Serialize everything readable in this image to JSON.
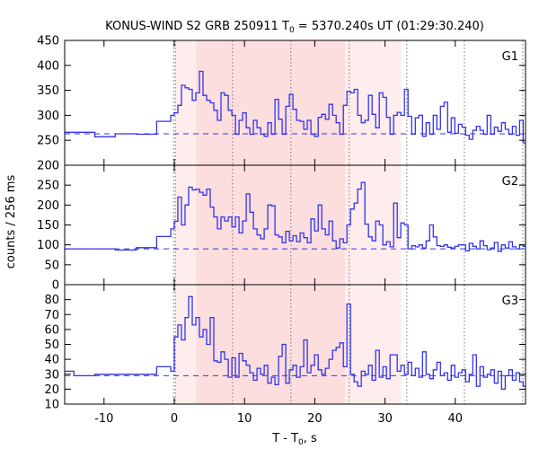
{
  "chart_data": {
    "type": "line",
    "style": "step",
    "title": {
      "pre": "KONUS-WIND S2 GRB 250911 T",
      "sub": "0",
      "post": " = 5370.240s UT (01:29:30.240)"
    },
    "xlabel": {
      "pre": "T - T",
      "sub": "0",
      "post": ", s"
    },
    "ylabel": "counts / 256 ms",
    "xlim": [
      -15.6,
      50.0
    ],
    "xticks": [
      -10,
      0,
      10,
      20,
      30,
      40
    ],
    "line_color": "#3333ee",
    "shading": [
      {
        "from": 0.1,
        "to": 3.1,
        "color": "#ffecec"
      },
      {
        "from": 3.1,
        "to": 24.3,
        "color": "#fddede"
      },
      {
        "from": 24.3,
        "to": 32.3,
        "color": "#ffecec"
      }
    ],
    "vlines": [
      -0.1,
      0.15,
      8.3,
      16.6,
      24.9,
      33.1,
      41.3,
      49.6
    ],
    "bin_width": 0.512,
    "panels": [
      {
        "name": "G1",
        "ylim": [
          200,
          450
        ],
        "yticks": [
          200,
          250,
          300,
          350,
          400,
          450
        ],
        "background": 263,
        "pre_edges": [
          -15.6,
          -11.3,
          -8.4,
          -5.4,
          -2.5,
          -0.5,
          0
        ],
        "pre_values": [
          266,
          257,
          263,
          262,
          288,
          300
        ],
        "values": [
          305,
          320,
          360,
          355,
          352,
          330,
          345,
          388,
          340,
          330,
          325,
          310,
          290,
          345,
          340,
          310,
          300,
          262,
          290,
          305,
          275,
          262,
          290,
          275,
          262,
          258,
          285,
          262,
          332,
          292,
          262,
          318,
          342,
          312,
          290,
          288,
          272,
          290,
          262,
          258,
          296,
          302,
          292,
          322,
          300,
          285,
          262,
          320,
          348,
          345,
          352,
          300,
          285,
          290,
          340,
          302,
          275,
          345,
          336,
          296,
          262,
          300,
          306,
          300,
          352,
          298,
          262,
          295,
          300,
          258,
          285,
          262,
          300,
          272,
          318,
          326,
          266,
          295,
          264,
          282,
          276,
          260,
          252,
          270,
          278,
          270,
          262,
          300,
          262,
          276,
          268,
          285,
          272,
          262,
          278,
          260,
          290,
          245
        ]
      },
      {
        "name": "G2",
        "ylim": [
          0,
          300
        ],
        "yticks": [
          0,
          50,
          100,
          150,
          200,
          250
        ],
        "background": 90,
        "pre_edges": [
          -15.6,
          -8.4,
          -5.4,
          -2.5,
          -0.5,
          0
        ],
        "pre_values": [
          90,
          87,
          93,
          121,
          140
        ],
        "values": [
          159,
          220,
          150,
          200,
          245,
          238,
          240,
          232,
          225,
          240,
          195,
          170,
          140,
          170,
          160,
          170,
          145,
          170,
          130,
          160,
          228,
          182,
          140,
          125,
          115,
          140,
          200,
          198,
          125,
          120,
          105,
          134,
          110,
          123,
          108,
          130,
          118,
          105,
          165,
          135,
          200,
          140,
          125,
          160,
          110,
          92,
          115,
          105,
          150,
          190,
          205,
          240,
          257,
          152,
          120,
          110,
          160,
          150,
          100,
          108,
          95,
          205,
          118,
          155,
          150,
          90,
          98,
          95,
          100,
          92,
          110,
          150,
          120,
          98,
          96,
          100,
          94,
          92,
          96,
          100,
          100,
          85,
          104,
          96,
          90,
          110,
          98,
          88,
          92,
          106,
          84,
          100,
          92,
          108,
          95,
          90,
          100,
          96
        ]
      },
      {
        "name": "G3",
        "ylim": [
          10,
          90
        ],
        "yticks": [
          10,
          20,
          30,
          40,
          50,
          60,
          70,
          80
        ],
        "background": 29,
        "pre_edges": [
          -15.6,
          -14.3,
          -11.3,
          -2.5,
          -0.5,
          0
        ],
        "pre_values": [
          32,
          29,
          30,
          35,
          32
        ],
        "values": [
          55,
          63,
          53,
          68,
          82,
          63,
          68,
          55,
          60,
          50,
          68,
          39,
          38,
          45,
          40,
          28,
          41,
          28,
          44,
          39,
          36,
          31,
          26,
          34,
          30,
          36,
          24,
          28,
          23,
          42,
          50,
          24,
          33,
          36,
          28,
          35,
          53,
          31,
          36,
          43,
          33,
          30,
          34,
          40,
          46,
          48,
          51,
          35,
          77,
          30,
          25,
          22,
          32,
          30,
          36,
          26,
          46,
          28,
          35,
          27,
          43,
          43,
          32,
          36,
          30,
          38,
          29,
          34,
          28,
          45,
          30,
          27,
          33,
          38,
          29,
          31,
          26,
          36,
          28,
          31,
          33,
          25,
          30,
          43,
          22,
          35,
          28,
          30,
          33,
          24,
          32,
          20,
          29,
          33,
          26,
          31,
          25,
          22
        ]
      }
    ]
  }
}
